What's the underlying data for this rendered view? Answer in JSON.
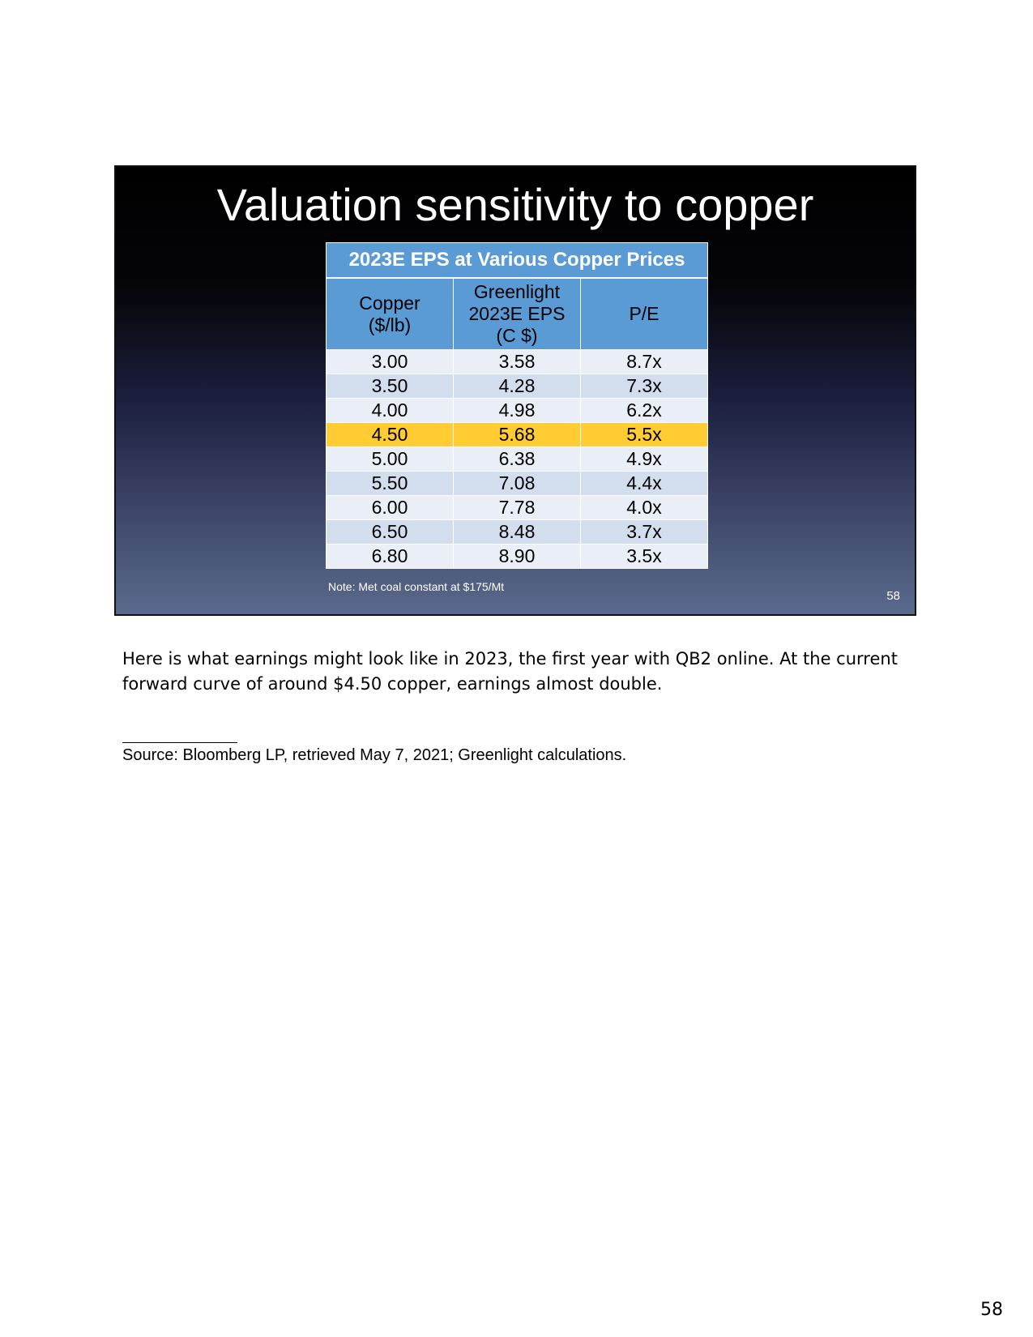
{
  "slide": {
    "title": "Valuation sensitivity to copper",
    "table": {
      "caption": "2023E EPS at Various Copper Prices",
      "headers": [
        [
          "Copper",
          "($/lb)"
        ],
        [
          "Greenlight",
          "2023E EPS",
          "(C $)"
        ],
        [
          "P/E"
        ]
      ],
      "rows": [
        [
          "3.00",
          "3.58",
          "8.7x"
        ],
        [
          "3.50",
          "4.28",
          "7.3x"
        ],
        [
          "4.00",
          "4.98",
          "6.2x"
        ],
        [
          "4.50",
          "5.68",
          "5.5x"
        ],
        [
          "5.00",
          "6.38",
          "4.9x"
        ],
        [
          "5.50",
          "7.08",
          "4.4x"
        ],
        [
          "6.00",
          "7.78",
          "4.0x"
        ],
        [
          "6.50",
          "8.48",
          "3.7x"
        ],
        [
          "6.80",
          "8.90",
          "3.5x"
        ]
      ],
      "highlight_color": "#ffcd33",
      "header_color": "#5b9bd5"
    },
    "note": "Note: Met coal constant at $175/Mt",
    "slide_number": "58"
  },
  "body_text": "Here is what earnings might look like in 2023, the first year with QB2 online.  At the current forward curve of around $4.50 copper, earnings almost double.",
  "source": "Source: Bloomberg LP, retrieved May 7, 2021; Greenlight calculations.",
  "page_number": "58"
}
